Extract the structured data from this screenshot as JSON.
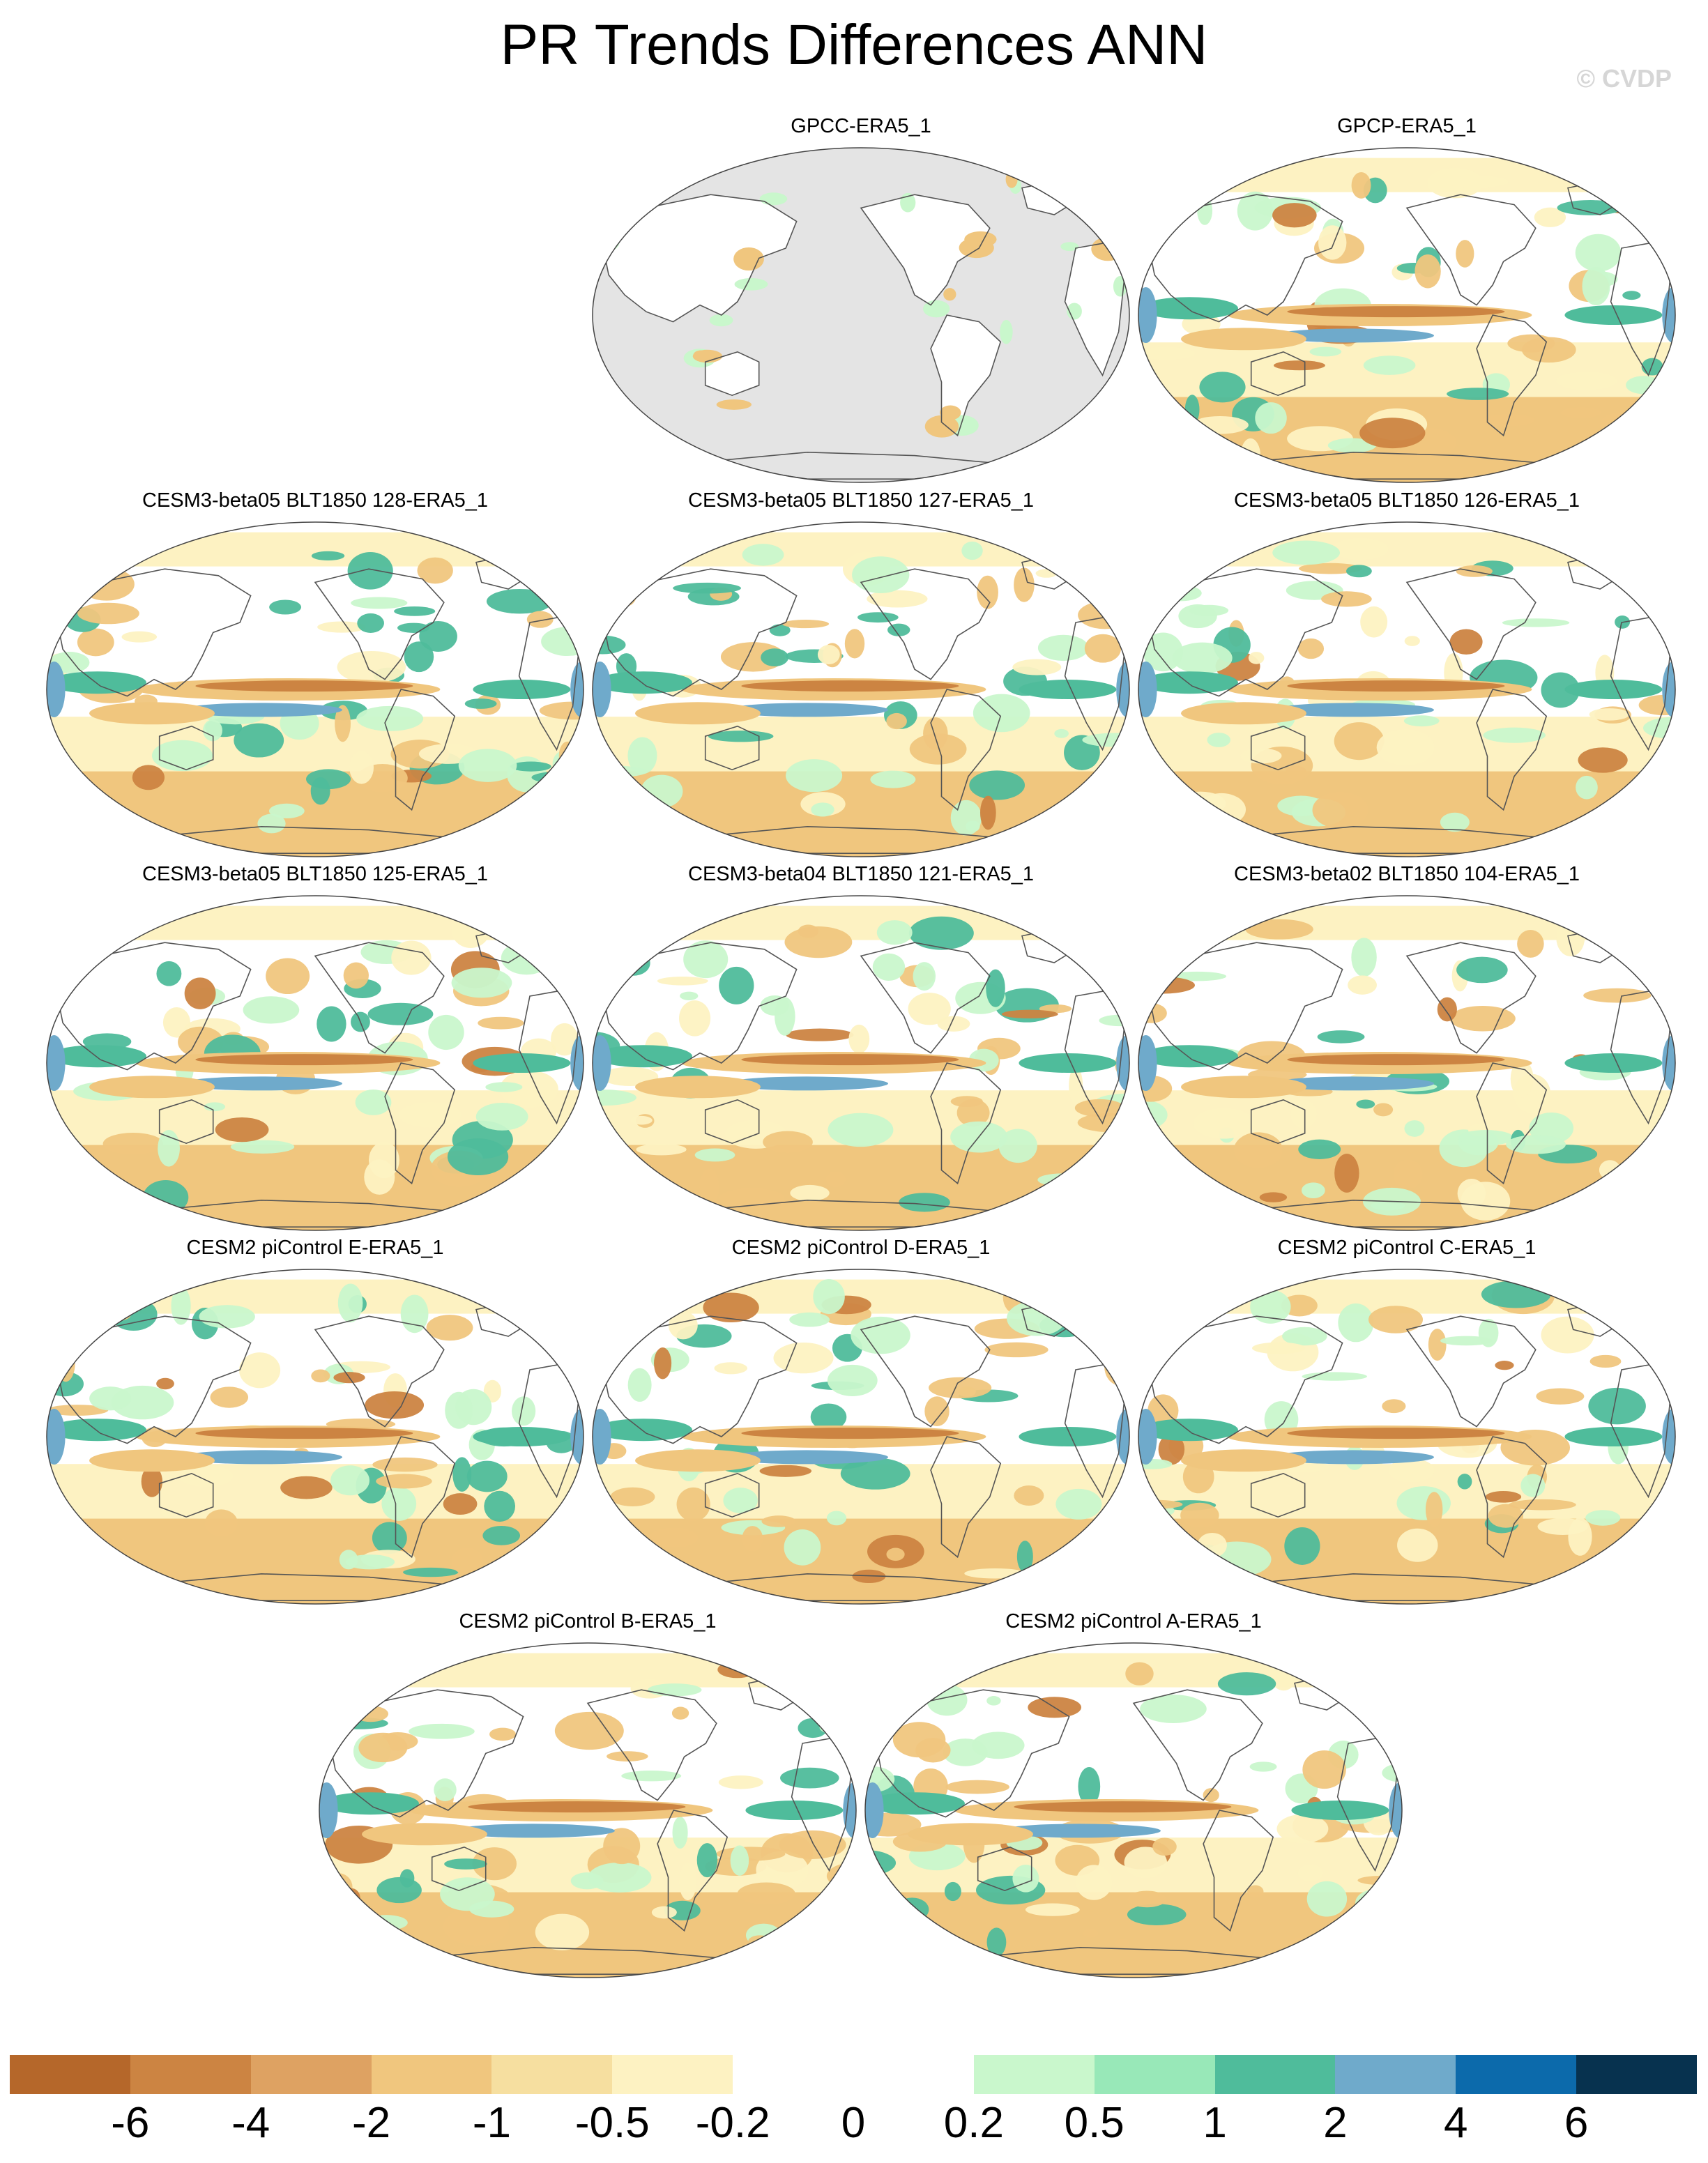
{
  "title": "PR Trends Differences ANN",
  "watermark": "© CVDP",
  "panels": [
    {
      "label": "GPCC-ERA5_1",
      "masked_ocean": true
    },
    {
      "label": "GPCP-ERA5_1"
    },
    {
      "label": "CESM3-beta05 BLT1850 128-ERA5_1"
    },
    {
      "label": "CESM3-beta05 BLT1850 127-ERA5_1"
    },
    {
      "label": "CESM3-beta05 BLT1850 126-ERA5_1"
    },
    {
      "label": "CESM3-beta05 BLT1850 125-ERA5_1"
    },
    {
      "label": "CESM3-beta04 BLT1850 121-ERA5_1"
    },
    {
      "label": "CESM3-beta02 BLT1850 104-ERA5_1"
    },
    {
      "label": "CESM2 piControl E-ERA5_1"
    },
    {
      "label": "CESM2 piControl D-ERA5_1"
    },
    {
      "label": "CESM2 piControl C-ERA5_1"
    },
    {
      "label": "CESM2 piControl B-ERA5_1"
    },
    {
      "label": "CESM2 piControl A-ERA5_1"
    }
  ],
  "colorbar": {
    "colors": [
      "#b5672a",
      "#cc8442",
      "#dea262",
      "#f0c67e",
      "#f6dfa0",
      "#fdf2c2",
      "#ffffff",
      "#ffffff",
      "#c9f7cc",
      "#98e8b8",
      "#4fbc9b",
      "#6faacb",
      "#0c6aab",
      "#07324f"
    ],
    "tick_labels": [
      "-6",
      "-4",
      "-2",
      "-1",
      "-0.5",
      "-0.2",
      "0",
      "0.2",
      "0.5",
      "1",
      "2",
      "4",
      "6"
    ]
  },
  "palette": {
    "land_mask": "#e4e4e4",
    "coast": "#555555",
    "dry_strong": "#cc8442",
    "dry": "#f0c67e",
    "dry_weak": "#fdf2c2",
    "wet_weak": "#c9f7cc",
    "wet": "#4fbc9b",
    "wet_strong": "#6faacb"
  }
}
